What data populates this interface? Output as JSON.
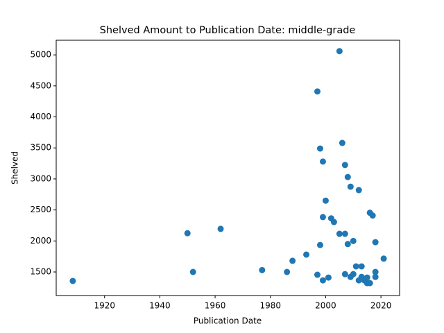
{
  "chart_data": {
    "type": "scatter",
    "title": "Shelved Amount to Publication Date: middle-grade",
    "x_label": "Publication Date",
    "y_label": "Shelved",
    "color": "#1f77b4",
    "x": [
      1908.5,
      1950,
      1952,
      1962,
      1977,
      1986,
      1988,
      1993,
      1997,
      1997,
      1998,
      1998,
      1999,
      1999,
      1999,
      2000,
      2001,
      2002,
      2003,
      2005,
      2005,
      2006,
      2007,
      2007,
      2007,
      2008,
      2008,
      2009,
      2009,
      2010,
      2010,
      2011,
      2012,
      2012,
      2013,
      2013,
      2014,
      2015,
      2015,
      2016,
      2016,
      2017,
      2018,
      2018,
      2018,
      2021
    ],
    "values": [
      1355,
      2125,
      1500,
      2195,
      1530,
      1500,
      1680,
      1780,
      4410,
      1455,
      3490,
      1935,
      3280,
      2385,
      1365,
      2650,
      1410,
      2365,
      2305,
      5060,
      2115,
      3580,
      3225,
      2115,
      1465,
      3030,
      1950,
      2875,
      1420,
      2000,
      1465,
      1590,
      2820,
      1365,
      1590,
      1420,
      1365,
      1320,
      1410,
      2455,
      1320,
      2410,
      1980,
      1500,
      1420,
      1715
    ],
    "xlim": [
      1902.5,
      2026.75
    ],
    "ylim": [
      1120,
      5236
    ],
    "xticks": [
      1920,
      1940,
      1960,
      1980,
      2000,
      2020
    ],
    "yticks": [
      1500,
      2000,
      2500,
      3000,
      3500,
      4000,
      4500,
      5000
    ]
  }
}
